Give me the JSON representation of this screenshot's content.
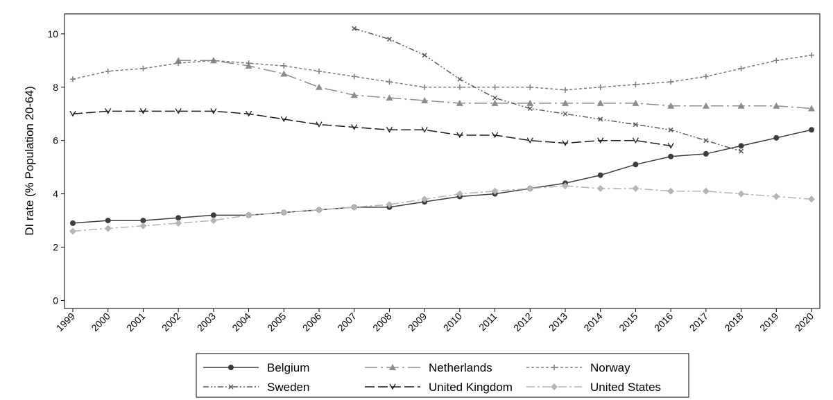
{
  "chart_data": {
    "type": "line",
    "ylabel": "DI rate (% Population 20-64)",
    "categories": [
      "1999",
      "2000",
      "2001",
      "2002",
      "2003",
      "2004",
      "2005",
      "2006",
      "2007",
      "2008",
      "2009",
      "2010",
      "2011",
      "2012",
      "2013",
      "2014",
      "2015",
      "2016",
      "2017",
      "2018",
      "2019",
      "2020"
    ],
    "ylim": [
      -0.3,
      10.75
    ],
    "yticks": [
      0,
      2,
      4,
      6,
      8,
      10
    ],
    "series": [
      {
        "name": "Belgium",
        "color": "#3c3c3c",
        "marker": "circle",
        "dash": "none",
        "values": [
          2.9,
          3.0,
          3.0,
          3.1,
          3.2,
          3.2,
          3.3,
          3.4,
          3.5,
          3.5,
          3.7,
          3.9,
          4.0,
          4.2,
          4.4,
          4.7,
          5.1,
          5.4,
          5.5,
          5.8,
          6.1,
          6.4
        ]
      },
      {
        "name": "Netherlands",
        "color": "#8c8c8c",
        "marker": "triangle",
        "dash": "18 5 3 5",
        "values": [
          null,
          null,
          null,
          9.0,
          9.0,
          8.8,
          8.5,
          8.0,
          7.7,
          7.6,
          7.5,
          7.4,
          7.4,
          7.4,
          7.4,
          7.4,
          7.4,
          7.3,
          7.3,
          7.3,
          7.3,
          7.2
        ]
      },
      {
        "name": "Norway",
        "color": "#7a7a7a",
        "marker": "plus",
        "dash": "4 3",
        "values": [
          8.3,
          8.6,
          8.7,
          8.9,
          9.0,
          8.9,
          8.8,
          8.6,
          8.4,
          8.2,
          8.0,
          8.0,
          8.0,
          8.0,
          7.9,
          8.0,
          8.1,
          8.2,
          8.4,
          8.7,
          9.0,
          9.2
        ]
      },
      {
        "name": "Sweden",
        "color": "#5a5a5a",
        "marker": "x",
        "dash": "8 3 2 3 2 3",
        "values": [
          null,
          null,
          null,
          null,
          null,
          null,
          null,
          null,
          10.2,
          9.8,
          9.2,
          8.3,
          7.6,
          7.2,
          7.0,
          6.8,
          6.6,
          6.4,
          6.0,
          5.6,
          null,
          null
        ]
      },
      {
        "name": "United Kingdom",
        "color": "#1a1a1a",
        "marker": "chevron",
        "dash": "14 5",
        "values": [
          7.0,
          7.1,
          7.1,
          7.1,
          7.1,
          7.0,
          6.8,
          6.6,
          6.5,
          6.4,
          6.4,
          6.2,
          6.2,
          6.0,
          5.9,
          6.0,
          6.0,
          5.8,
          null,
          null,
          null,
          null
        ]
      },
      {
        "name": "United States",
        "color": "#b4b4b4",
        "marker": "diamond",
        "dash": "12 4 3 4",
        "values": [
          2.6,
          2.7,
          2.8,
          2.9,
          3.0,
          3.2,
          3.3,
          3.4,
          3.5,
          3.6,
          3.8,
          4.0,
          4.1,
          4.2,
          4.3,
          4.2,
          4.2,
          4.1,
          4.1,
          4.0,
          3.9,
          3.8
        ]
      }
    ]
  }
}
